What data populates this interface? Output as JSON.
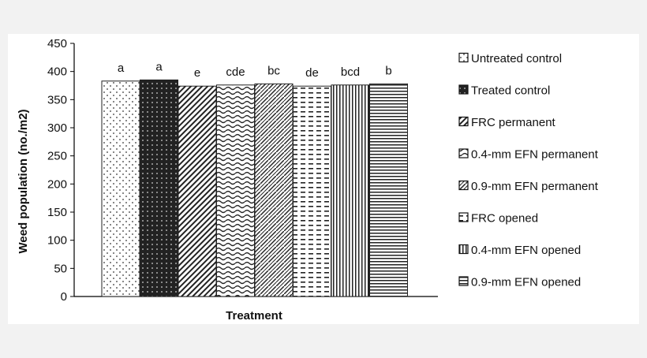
{
  "chart_data": {
    "type": "bar",
    "ylabel": "Weed population (no./m2)",
    "xlabel": "Treatment",
    "ylim": [
      0,
      450
    ],
    "yticks": [
      0,
      50,
      100,
      150,
      200,
      250,
      300,
      350,
      400,
      450
    ],
    "legend_position": "right",
    "series": [
      {
        "name": "Untreated control",
        "value": 383,
        "letter": "a",
        "pattern": "dots"
      },
      {
        "name": "Treated control",
        "value": 385,
        "letter": "a",
        "pattern": "dark-grid"
      },
      {
        "name": "FRC permanent",
        "value": 374,
        "letter": "e",
        "pattern": "diagonal"
      },
      {
        "name": "0.4-mm EFN permanent",
        "value": 376,
        "letter": "cde",
        "pattern": "waves"
      },
      {
        "name": "0.9-mm EFN permanent",
        "value": 378,
        "letter": "bc",
        "pattern": "zigzag"
      },
      {
        "name": "FRC opened",
        "value": 374,
        "letter": "de",
        "pattern": "dashes"
      },
      {
        "name": "0.4-mm EFN opened",
        "value": 376,
        "letter": "bcd",
        "pattern": "vertical"
      },
      {
        "name": "0.9-mm EFN opened",
        "value": 378,
        "letter": "b",
        "pattern": "horizontal"
      }
    ]
  }
}
